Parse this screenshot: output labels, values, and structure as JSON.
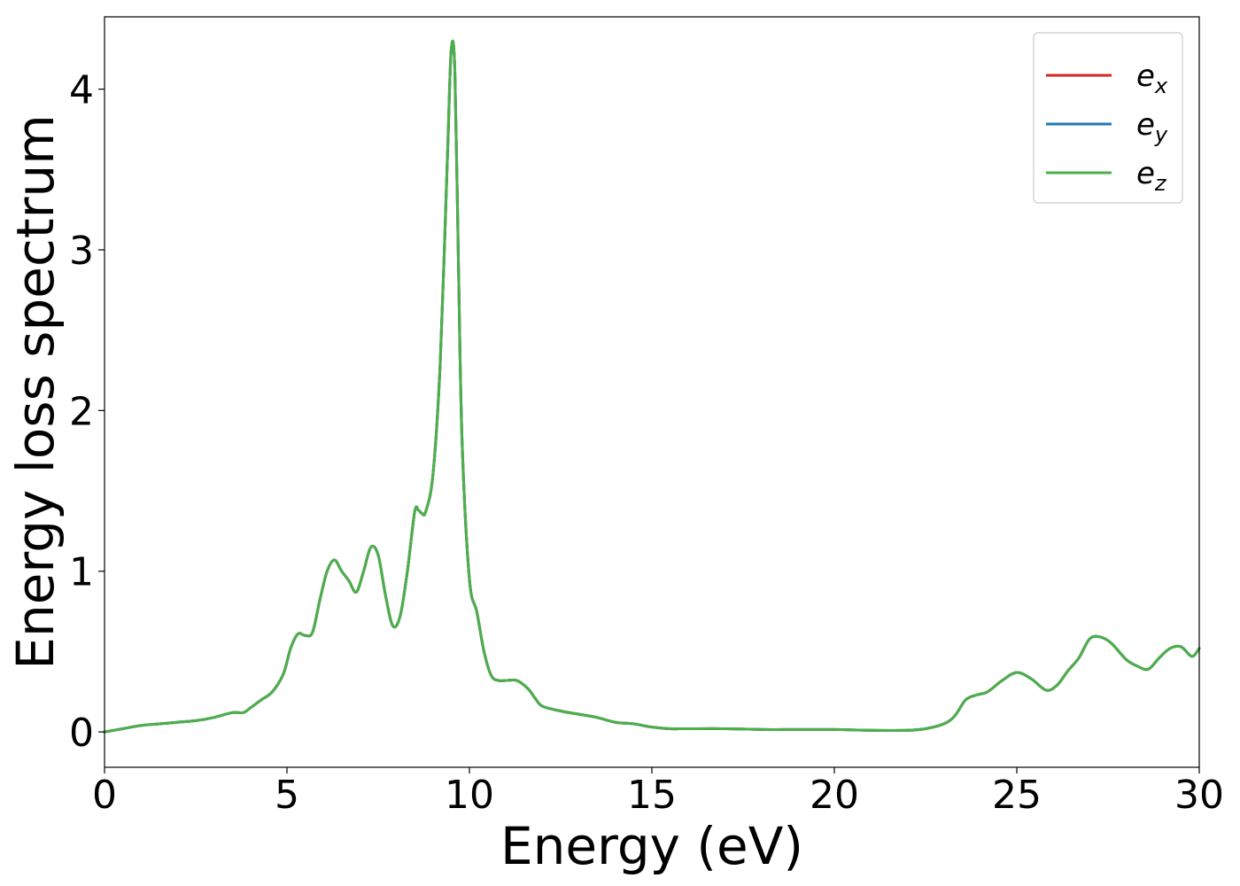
{
  "chart_data": {
    "type": "line",
    "title": "",
    "xlabel": "Energy (eV)",
    "ylabel": "Energy loss spectrum",
    "xlim": [
      0,
      30
    ],
    "ylim": [
      -0.22,
      4.45
    ],
    "xticks": [
      0,
      5,
      10,
      15,
      20,
      25,
      30
    ],
    "yticks": [
      0,
      1,
      2,
      3,
      4
    ],
    "grid": false,
    "legend_position": "top-right",
    "x": [
      0,
      0.5,
      1.0,
      1.5,
      2.0,
      2.5,
      3.0,
      3.5,
      3.8,
      4.0,
      4.3,
      4.6,
      4.9,
      5.1,
      5.3,
      5.5,
      5.7,
      5.9,
      6.1,
      6.3,
      6.5,
      6.7,
      6.9,
      7.1,
      7.3,
      7.5,
      7.7,
      7.9,
      8.1,
      8.3,
      8.5,
      8.6,
      8.7,
      8.8,
      9.0,
      9.2,
      9.4,
      9.5,
      9.6,
      9.7,
      9.8,
      10.0,
      10.2,
      10.4,
      10.6,
      10.8,
      11.0,
      11.3,
      11.6,
      11.8,
      12.0,
      12.5,
      13.0,
      13.5,
      14.0,
      14.5,
      15.0,
      15.5,
      16.0,
      17.0,
      18.0,
      19.0,
      20.0,
      21.0,
      22.0,
      22.5,
      23.0,
      23.3,
      23.6,
      23.9,
      24.2,
      24.6,
      25.0,
      25.4,
      25.8,
      26.1,
      26.4,
      26.7,
      27.0,
      27.3,
      27.6,
      28.0,
      28.3,
      28.6,
      28.9,
      29.2,
      29.5,
      29.8,
      30.0
    ],
    "series": [
      {
        "name": "e_x",
        "name_base": "e",
        "name_sub": "x",
        "color": "#d62728",
        "values": [
          0.0,
          0.02,
          0.04,
          0.05,
          0.06,
          0.07,
          0.09,
          0.12,
          0.12,
          0.15,
          0.2,
          0.25,
          0.36,
          0.52,
          0.61,
          0.6,
          0.62,
          0.82,
          1.0,
          1.07,
          1.0,
          0.94,
          0.87,
          1.0,
          1.15,
          1.1,
          0.85,
          0.66,
          0.72,
          1.0,
          1.37,
          1.38,
          1.36,
          1.37,
          1.6,
          2.3,
          3.6,
          4.24,
          4.12,
          2.9,
          1.8,
          0.95,
          0.75,
          0.5,
          0.35,
          0.32,
          0.32,
          0.32,
          0.27,
          0.21,
          0.16,
          0.13,
          0.11,
          0.09,
          0.06,
          0.05,
          0.03,
          0.02,
          0.02,
          0.02,
          0.015,
          0.015,
          0.015,
          0.01,
          0.01,
          0.02,
          0.05,
          0.1,
          0.2,
          0.23,
          0.25,
          0.32,
          0.37,
          0.33,
          0.26,
          0.29,
          0.38,
          0.46,
          0.58,
          0.59,
          0.55,
          0.45,
          0.41,
          0.39,
          0.46,
          0.52,
          0.53,
          0.47,
          0.52
        ]
      },
      {
        "name": "e_y",
        "name_base": "e",
        "name_sub": "y",
        "color": "#1f77b4",
        "values": [
          0.0,
          0.02,
          0.04,
          0.05,
          0.06,
          0.07,
          0.09,
          0.12,
          0.12,
          0.15,
          0.2,
          0.25,
          0.36,
          0.52,
          0.61,
          0.6,
          0.62,
          0.82,
          1.0,
          1.07,
          1.0,
          0.94,
          0.87,
          1.0,
          1.15,
          1.1,
          0.85,
          0.66,
          0.72,
          1.0,
          1.37,
          1.38,
          1.36,
          1.37,
          1.6,
          2.3,
          3.6,
          4.24,
          4.12,
          2.9,
          1.8,
          0.95,
          0.75,
          0.5,
          0.35,
          0.32,
          0.32,
          0.32,
          0.27,
          0.21,
          0.16,
          0.13,
          0.11,
          0.09,
          0.06,
          0.05,
          0.03,
          0.02,
          0.02,
          0.02,
          0.015,
          0.015,
          0.015,
          0.01,
          0.01,
          0.02,
          0.05,
          0.1,
          0.2,
          0.23,
          0.25,
          0.32,
          0.37,
          0.33,
          0.26,
          0.29,
          0.38,
          0.46,
          0.58,
          0.59,
          0.55,
          0.45,
          0.41,
          0.39,
          0.46,
          0.52,
          0.53,
          0.47,
          0.52
        ]
      },
      {
        "name": "e_z",
        "name_base": "e",
        "name_sub": "z",
        "color": "#4daf4a",
        "values": [
          0.0,
          0.02,
          0.04,
          0.05,
          0.06,
          0.07,
          0.09,
          0.12,
          0.12,
          0.15,
          0.2,
          0.25,
          0.36,
          0.52,
          0.61,
          0.6,
          0.62,
          0.82,
          1.0,
          1.07,
          1.0,
          0.94,
          0.87,
          1.0,
          1.15,
          1.1,
          0.85,
          0.66,
          0.72,
          1.0,
          1.37,
          1.38,
          1.36,
          1.37,
          1.6,
          2.3,
          3.6,
          4.24,
          4.12,
          2.9,
          1.8,
          0.95,
          0.75,
          0.5,
          0.35,
          0.32,
          0.32,
          0.32,
          0.27,
          0.21,
          0.16,
          0.13,
          0.11,
          0.09,
          0.06,
          0.05,
          0.03,
          0.02,
          0.02,
          0.02,
          0.015,
          0.015,
          0.015,
          0.01,
          0.01,
          0.02,
          0.05,
          0.1,
          0.2,
          0.23,
          0.25,
          0.32,
          0.37,
          0.33,
          0.26,
          0.29,
          0.38,
          0.46,
          0.58,
          0.59,
          0.55,
          0.45,
          0.41,
          0.39,
          0.46,
          0.52,
          0.53,
          0.47,
          0.52
        ]
      }
    ]
  }
}
